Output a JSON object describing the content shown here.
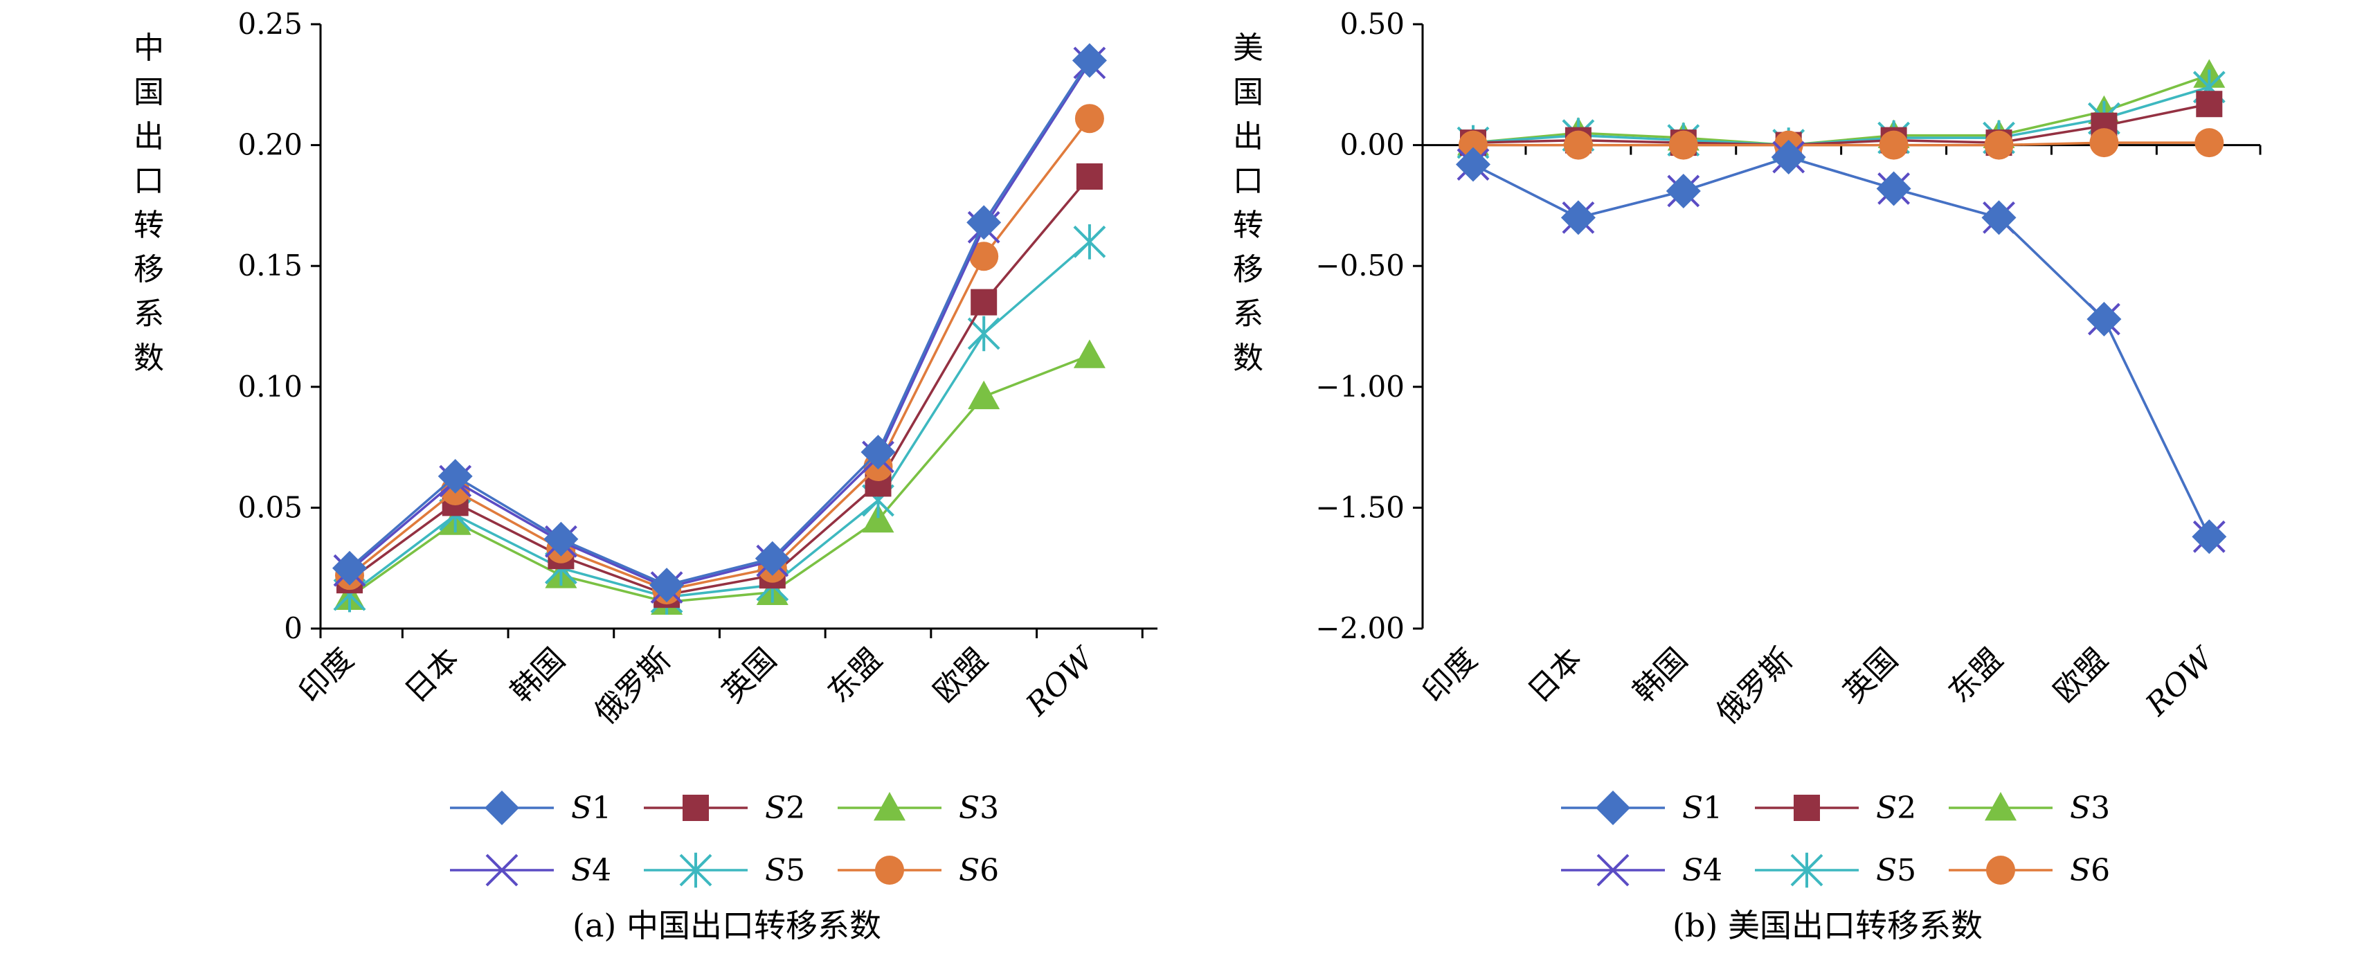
{
  "chart_data": [
    {
      "type": "line",
      "title": "(a) 中国出口转移系数",
      "ylabel": "中国出口转移系数",
      "xlabel": "",
      "categories": [
        "印度",
        "日本",
        "韩国",
        "俄罗斯",
        "英国",
        "东盟",
        "欧盟",
        "ROW"
      ],
      "ylim": [
        0,
        0.25
      ],
      "yticks": [
        0,
        0.05,
        0.1,
        0.15,
        0.2,
        0.25
      ],
      "ytick_labels": [
        "0",
        "0.05",
        "0.10",
        "0.15",
        "0.20",
        "0.25"
      ],
      "series": [
        {
          "name": "S1",
          "values": [
            0.025,
            0.063,
            0.037,
            0.018,
            0.029,
            0.073,
            0.168,
            0.235
          ]
        },
        {
          "name": "S2",
          "values": [
            0.02,
            0.052,
            0.03,
            0.014,
            0.022,
            0.06,
            0.135,
            0.187
          ]
        },
        {
          "name": "S3",
          "values": [
            0.013,
            0.044,
            0.022,
            0.011,
            0.015,
            0.045,
            0.096,
            0.113
          ]
        },
        {
          "name": "S4",
          "values": [
            0.024,
            0.061,
            0.036,
            0.017,
            0.028,
            0.071,
            0.166,
            0.234
          ]
        },
        {
          "name": "S5",
          "values": [
            0.014,
            0.047,
            0.025,
            0.013,
            0.018,
            0.053,
            0.122,
            0.16
          ]
        },
        {
          "name": "S6",
          "values": [
            0.022,
            0.057,
            0.033,
            0.016,
            0.025,
            0.067,
            0.154,
            0.211
          ]
        }
      ],
      "legend": "bottom"
    },
    {
      "type": "line",
      "title": "(b) 美国出口转移系数",
      "ylabel": "美国出口转移系数",
      "xlabel": "",
      "categories": [
        "印度",
        "日本",
        "韩国",
        "俄罗斯",
        "英国",
        "东盟",
        "欧盟",
        "ROW"
      ],
      "ylim": [
        -2.0,
        0.5
      ],
      "yticks": [
        -2.0,
        -1.5,
        -1.0,
        -0.5,
        0.0,
        0.5
      ],
      "ytick_labels": [
        "−2.00",
        "−1.50",
        "−1.00",
        "−0.50",
        "0.00",
        "0.50"
      ],
      "series": [
        {
          "name": "S1",
          "values": [
            -0.08,
            -0.3,
            -0.19,
            -0.05,
            -0.18,
            -0.3,
            -0.72,
            -1.62
          ]
        },
        {
          "name": "S2",
          "values": [
            0.01,
            0.02,
            0.01,
            0.0,
            0.02,
            0.01,
            0.08,
            0.17
          ]
        },
        {
          "name": "S3",
          "values": [
            0.01,
            0.05,
            0.03,
            0.0,
            0.04,
            0.04,
            0.14,
            0.29
          ]
        },
        {
          "name": "S4",
          "values": [
            -0.08,
            -0.3,
            -0.19,
            -0.05,
            -0.18,
            -0.3,
            -0.72,
            -1.62
          ]
        },
        {
          "name": "S5",
          "values": [
            0.01,
            0.04,
            0.02,
            0.0,
            0.03,
            0.03,
            0.11,
            0.24
          ]
        },
        {
          "name": "S6",
          "values": [
            0.0,
            0.0,
            0.0,
            0.0,
            0.0,
            0.0,
            0.01,
            0.01
          ]
        }
      ],
      "legend": "bottom"
    }
  ],
  "legend_labels": [
    "S1",
    "S2",
    "S3",
    "S4",
    "S5",
    "S6"
  ],
  "colors": {
    "S1": "#4472C4",
    "S2": "#943142",
    "S3": "#7AC143",
    "S4": "#5B4CC4",
    "S5": "#3DB8C0",
    "S6": "#E07B3C"
  }
}
